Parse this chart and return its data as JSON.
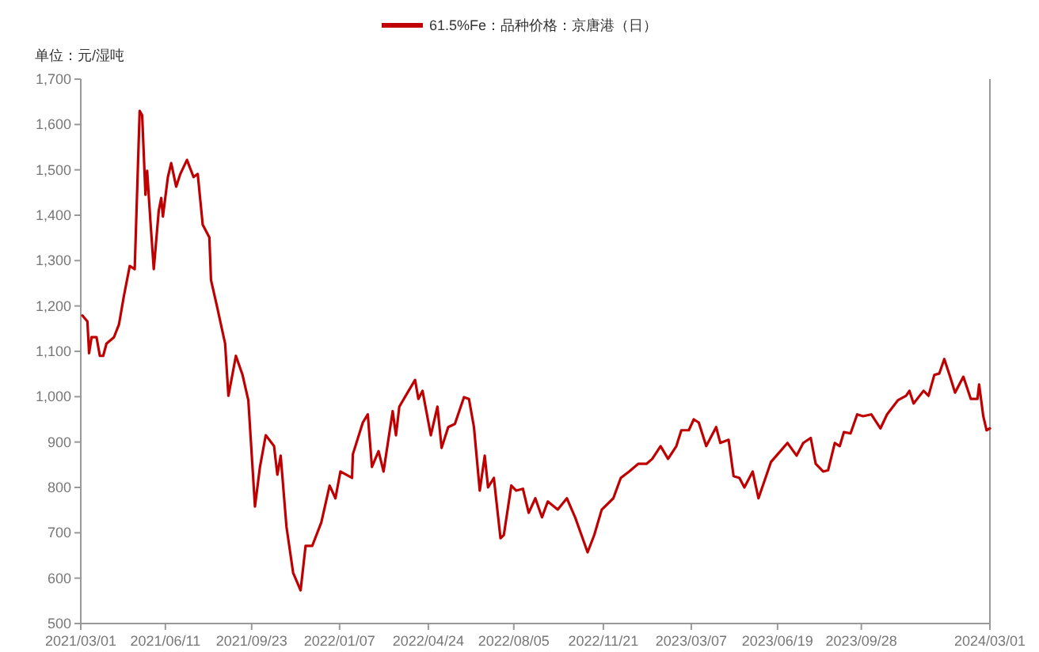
{
  "chart_data": {
    "type": "line",
    "ylabel": "单位：元/湿吨",
    "legend": "top",
    "grid": false,
    "xlim": [
      "2021-03-01",
      "2024-03-01"
    ],
    "xticks": [
      {
        "value": "2021-03-01",
        "label": "2021/03/01"
      },
      {
        "value": "2021-06-11",
        "label": "2021/06/11"
      },
      {
        "value": "2021-09-23",
        "label": "2021/09/23"
      },
      {
        "value": "2022-01-07",
        "label": "2022/01/07"
      },
      {
        "value": "2022-04-24",
        "label": "2022/04/24"
      },
      {
        "value": "2022-08-05",
        "label": "2022/08/05"
      },
      {
        "value": "2022-11-21",
        "label": "2022/11/21"
      },
      {
        "value": "2023-03-07",
        "label": "2023/03/07"
      },
      {
        "value": "2023-06-19",
        "label": "2023/06/19"
      },
      {
        "value": "2023-09-28",
        "label": "2023/09/28"
      },
      {
        "value": "2024-03-01",
        "label": "2024/03/01"
      }
    ],
    "ylim": [
      500,
      1700
    ],
    "yticks": [
      500,
      600,
      700,
      800,
      900,
      {
        "value": 1000,
        "label": "1,000"
      },
      {
        "value": 1100,
        "label": "1,100"
      },
      {
        "value": 1200,
        "label": "1,200"
      },
      {
        "value": 1300,
        "label": "1,300"
      },
      {
        "value": 1400,
        "label": "1,400"
      },
      {
        "value": 1500,
        "label": "1,500"
      },
      {
        "value": 1600,
        "label": "1,600"
      },
      {
        "value": 1700,
        "label": "1,700"
      }
    ],
    "x": [
      "2021-03-03",
      "2021-03-09",
      "2021-03-11",
      "2021-03-14",
      "2021-03-20",
      "2021-03-24",
      "2021-03-28",
      "2021-04-01",
      "2021-04-10",
      "2021-04-16",
      "2021-04-22",
      "2021-04-29",
      "2021-05-05",
      "2021-05-11",
      "2021-05-14",
      "2021-05-18",
      "2021-05-20",
      "2021-05-24",
      "2021-05-28",
      "2021-06-03",
      "2021-06-06",
      "2021-06-08",
      "2021-06-14",
      "2021-06-18",
      "2021-06-24",
      "2021-06-29",
      "2021-07-07",
      "2021-07-15",
      "2021-07-20",
      "2021-07-26",
      "2021-08-03",
      "2021-08-05",
      "2021-08-12",
      "2021-08-22",
      "2021-08-26",
      "2021-09-04",
      "2021-09-12",
      "2021-09-19",
      "2021-09-27",
      "2021-10-03",
      "2021-10-10",
      "2021-10-20",
      "2021-10-24",
      "2021-10-28",
      "2021-11-04",
      "2021-11-12",
      "2021-11-21",
      "2021-11-27",
      "2021-12-05",
      "2021-12-16",
      "2021-12-26",
      "2022-01-02",
      "2022-01-08",
      "2022-01-22",
      "2022-01-23",
      "2022-02-04",
      "2022-02-10",
      "2022-02-15",
      "2022-02-23",
      "2022-03-01",
      "2022-03-12",
      "2022-03-16",
      "2022-03-20",
      "2022-04-08",
      "2022-04-12",
      "2022-04-17",
      "2022-04-27",
      "2022-05-05",
      "2022-05-10",
      "2022-05-18",
      "2022-05-26",
      "2022-06-06",
      "2022-06-12",
      "2022-06-18",
      "2022-06-25",
      "2022-07-01",
      "2022-07-05",
      "2022-07-12",
      "2022-07-20",
      "2022-07-24",
      "2022-08-02",
      "2022-08-08",
      "2022-08-16",
      "2022-08-23",
      "2022-08-31",
      "2022-09-08",
      "2022-09-15",
      "2022-09-27",
      "2022-10-08",
      "2022-10-18",
      "2022-10-27",
      "2022-11-02",
      "2022-11-10",
      "2022-11-19",
      "2022-12-03",
      "2022-12-12",
      "2022-12-22",
      "2023-01-02",
      "2023-01-12",
      "2023-01-19",
      "2023-01-29",
      "2023-02-07",
      "2023-02-17",
      "2023-02-23",
      "2023-03-04",
      "2023-03-10",
      "2023-03-16",
      "2023-03-25",
      "2023-04-06",
      "2023-04-11",
      "2023-04-21",
      "2023-04-27",
      "2023-05-04",
      "2023-05-10",
      "2023-05-20",
      "2023-05-27",
      "2023-06-11",
      "2023-06-21",
      "2023-07-01",
      "2023-07-12",
      "2023-07-20",
      "2023-07-29",
      "2023-08-04",
      "2023-08-13",
      "2023-08-19",
      "2023-08-27",
      "2023-09-02",
      "2023-09-07",
      "2023-09-15",
      "2023-09-23",
      "2023-09-30",
      "2023-10-10",
      "2023-10-21",
      "2023-10-29",
      "2023-11-11",
      "2023-11-21",
      "2023-11-25",
      "2023-11-30",
      "2023-12-12",
      "2023-12-18",
      "2023-12-25",
      "2023-12-31",
      "2024-01-06",
      "2024-01-13",
      "2024-01-19",
      "2024-01-29",
      "2024-02-07",
      "2024-02-15",
      "2024-02-17",
      "2024-02-22",
      "2024-02-26",
      "2024-03-01"
    ],
    "series": [
      {
        "name": "61.5%Fe：品种价格：京唐港（日）",
        "color": "#c00000",
        "values": [
          1179,
          1166,
          1096,
          1131,
          1131,
          1090,
          1090,
          1117,
          1131,
          1159,
          1222,
          1288,
          1281,
          1630,
          1620,
          1445,
          1498,
          1386,
          1281,
          1410,
          1438,
          1397,
          1484,
          1515,
          1463,
          1491,
          1522,
          1484,
          1491,
          1379,
          1351,
          1257,
          1201,
          1117,
          1002,
          1090,
          1048,
          992,
          758,
          845,
          915,
          891,
          828,
          870,
          713,
          612,
          573,
          671,
          671,
          723,
          804,
          776,
          835,
          821,
          873,
          943,
          961,
          845,
          880,
          835,
          968,
          915,
          978,
          1037,
          995,
          1013,
          915,
          978,
          887,
          933,
          940,
          999,
          995,
          933,
          793,
          870,
          800,
          821,
          688,
          695,
          804,
          793,
          797,
          744,
          776,
          734,
          769,
          751,
          776,
          734,
          688,
          657,
          695,
          751,
          776,
          821,
          835,
          852,
          852,
          863,
          891,
          863,
          891,
          926,
          926,
          950,
          943,
          891,
          933,
          898,
          905,
          825,
          821,
          800,
          835,
          776,
          856,
          877,
          898,
          870,
          898,
          909,
          852,
          835,
          838,
          898,
          891,
          922,
          919,
          961,
          957,
          961,
          930,
          961,
          992,
          1002,
          1013,
          985,
          1013,
          1002,
          1048,
          1051,
          1083,
          1044,
          1009,
          1044,
          995,
          995,
          1027,
          957,
          926,
          930
        ]
      }
    ]
  }
}
